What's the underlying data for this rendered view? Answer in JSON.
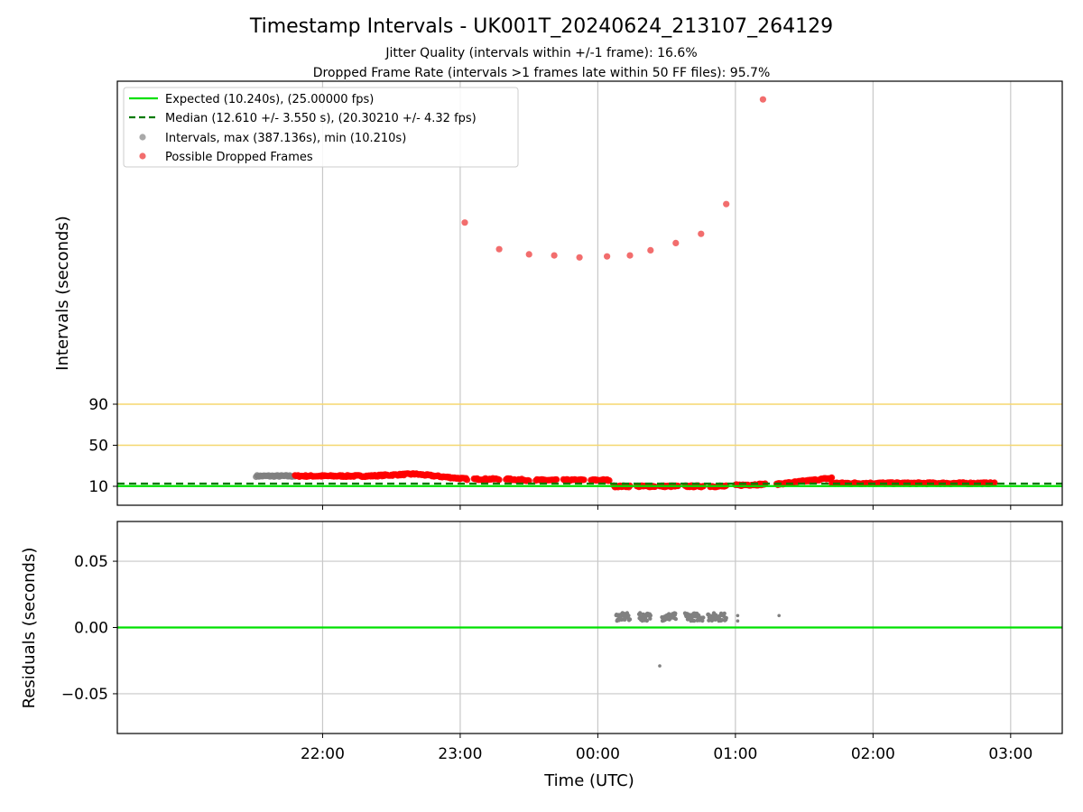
{
  "chart_data": {
    "type": "scatter",
    "title": "Timestamp Intervals - UK001T_20240624_213107_264129",
    "subtitle_1": "Jitter Quality (intervals within +/-1 frame): 16.6%",
    "subtitle_2": "Dropped Frame Rate (intervals >1 frames late within 50 FF files): 95.7%",
    "xlabel": "Time (UTC)",
    "x_ticks": [
      "22:00",
      "23:00",
      "00:00",
      "01:00",
      "02:00",
      "03:00"
    ],
    "top": {
      "ylabel": "Intervals (seconds)",
      "y_ticks": [
        "10",
        "50",
        "90"
      ],
      "legend": [
        "Expected (10.240s), (25.00000 fps)",
        "Median (12.610 +/- 3.550 s), (20.30210 +/- 4.32 fps)",
        "Intervals, max (387.136s), min (10.210s)",
        "Possible Dropped Frames"
      ],
      "expected": 10.24,
      "median": 12.61,
      "threshold_lines": [
        50,
        90
      ],
      "dropped_outliers": [
        {
          "t": "23:02",
          "v": 267
        },
        {
          "t": "23:17",
          "v": 241
        },
        {
          "t": "23:30",
          "v": 236
        },
        {
          "t": "23:41",
          "v": 235
        },
        {
          "t": "23:52",
          "v": 233
        },
        {
          "t": "00:04",
          "v": 234
        },
        {
          "t": "00:14",
          "v": 235
        },
        {
          "t": "00:23",
          "v": 240
        },
        {
          "t": "00:34",
          "v": 247
        },
        {
          "t": "00:45",
          "v": 256
        },
        {
          "t": "00:56",
          "v": 285
        },
        {
          "t": "01:12",
          "v": 387
        }
      ],
      "interval_bands": [
        {
          "kind": "gray",
          "start": "21:31",
          "end": "21:48",
          "v0": 20,
          "v1": 20
        },
        {
          "kind": "red",
          "start": "21:48",
          "end": "22:20",
          "v0": 20,
          "v1": 20
        },
        {
          "kind": "red",
          "start": "22:20",
          "end": "22:40",
          "v0": 20,
          "v1": 22
        },
        {
          "kind": "red",
          "start": "22:40",
          "end": "23:03",
          "v0": 22,
          "v1": 17
        },
        {
          "kind": "red",
          "start": "23:06",
          "end": "23:17",
          "v0": 17,
          "v1": 17
        },
        {
          "kind": "red",
          "start": "23:20",
          "end": "23:30",
          "v0": 17,
          "v1": 16
        },
        {
          "kind": "red",
          "start": "23:33",
          "end": "23:42",
          "v0": 16,
          "v1": 16
        },
        {
          "kind": "red",
          "start": "23:45",
          "end": "23:54",
          "v0": 16,
          "v1": 16
        },
        {
          "kind": "red",
          "start": "23:57",
          "end": "00:05",
          "v0": 16,
          "v1": 16
        },
        {
          "kind": "red",
          "start": "00:07",
          "end": "00:14",
          "v0": 10,
          "v1": 10
        },
        {
          "kind": "red",
          "start": "00:17",
          "end": "00:25",
          "v0": 10,
          "v1": 10
        },
        {
          "kind": "red",
          "start": "00:27",
          "end": "00:35",
          "v0": 10,
          "v1": 10
        },
        {
          "kind": "red",
          "start": "00:38",
          "end": "00:46",
          "v0": 10,
          "v1": 10
        },
        {
          "kind": "red",
          "start": "00:49",
          "end": "00:56",
          "v0": 10,
          "v1": 10
        },
        {
          "kind": "red",
          "start": "01:00",
          "end": "01:13",
          "v0": 11,
          "v1": 12
        },
        {
          "kind": "red",
          "start": "01:18",
          "end": "01:42",
          "v0": 12,
          "v1": 18
        },
        {
          "kind": "red",
          "start": "01:42",
          "end": "02:53",
          "v0": 13,
          "v1": 13
        }
      ]
    },
    "bottom": {
      "ylabel": "Residuals (seconds)",
      "y_ticks": [
        "0.05",
        "0.00",
        "−0.05"
      ],
      "ylim": [
        -0.08,
        0.08
      ],
      "zero_line": 0.0,
      "clusters": [
        {
          "start": "00:08",
          "end": "00:14",
          "v": 0.008
        },
        {
          "start": "00:18",
          "end": "00:23",
          "v": 0.008
        },
        {
          "start": "00:28",
          "end": "00:34",
          "v": 0.008
        },
        {
          "start": "00:38",
          "end": "00:46",
          "v": 0.008
        },
        {
          "start": "00:48",
          "end": "00:56",
          "v": 0.008
        }
      ],
      "singles": [
        {
          "t": "00:27",
          "v": -0.029
        },
        {
          "t": "01:01",
          "v": 0.009
        },
        {
          "t": "01:01",
          "v": 0.005
        },
        {
          "t": "01:19",
          "v": 0.009
        }
      ]
    },
    "colors": {
      "expected": "#00e000",
      "median": "#007a00",
      "threshold": "#f5d76e",
      "interval": "#808080",
      "dropped": "#ff0000",
      "dropped_outlier": "#f26d6d"
    },
    "grid": true,
    "legend_position": "upper left"
  }
}
